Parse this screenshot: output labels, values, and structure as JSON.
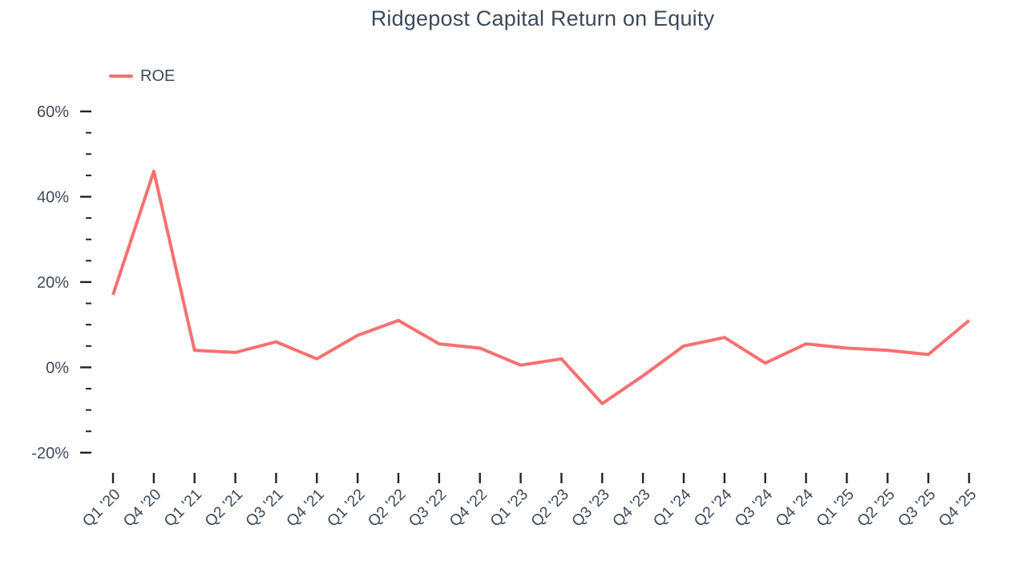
{
  "title": "Ridgepost Capital Return on Equity",
  "legend": {
    "items": [
      {
        "label": "ROE",
        "color": "#F87070"
      }
    ]
  },
  "colors": {
    "series": "#F87070",
    "text": "#3E4A59",
    "tick": "#20242B",
    "background": "#FFFFFF"
  },
  "chart_data": {
    "type": "line",
    "title": "Ridgepost Capital Return on Equity",
    "categories": [
      "Q1 '20",
      "Q4 '20",
      "Q1 '21",
      "Q2 '21",
      "Q3 '21",
      "Q4 '21",
      "Q1 '22",
      "Q2 '22",
      "Q3 '22",
      "Q4 '22",
      "Q1 '23",
      "Q2 '23",
      "Q3 '23",
      "Q4 '23",
      "Q1 '24",
      "Q2 '24",
      "Q3 '24",
      "Q4 '24",
      "Q1 '25",
      "Q2 '25",
      "Q3 '25",
      "Q4 '25"
    ],
    "series": [
      {
        "name": "ROE",
        "color": "#F87070",
        "values": [
          17,
          46,
          4,
          3.5,
          6,
          2,
          7.5,
          11,
          5.5,
          4.5,
          0.5,
          2,
          -8.5,
          -2,
          5,
          7,
          1,
          5.5,
          4.5,
          4,
          3,
          11
        ]
      }
    ],
    "xlabel": "",
    "ylabel": "",
    "ylim": [
      -20,
      60
    ],
    "ytick_major_step": 20,
    "ytick_minor_step": 5,
    "ytick_suffix": "%",
    "grid": false,
    "legend_position": "top-left"
  }
}
